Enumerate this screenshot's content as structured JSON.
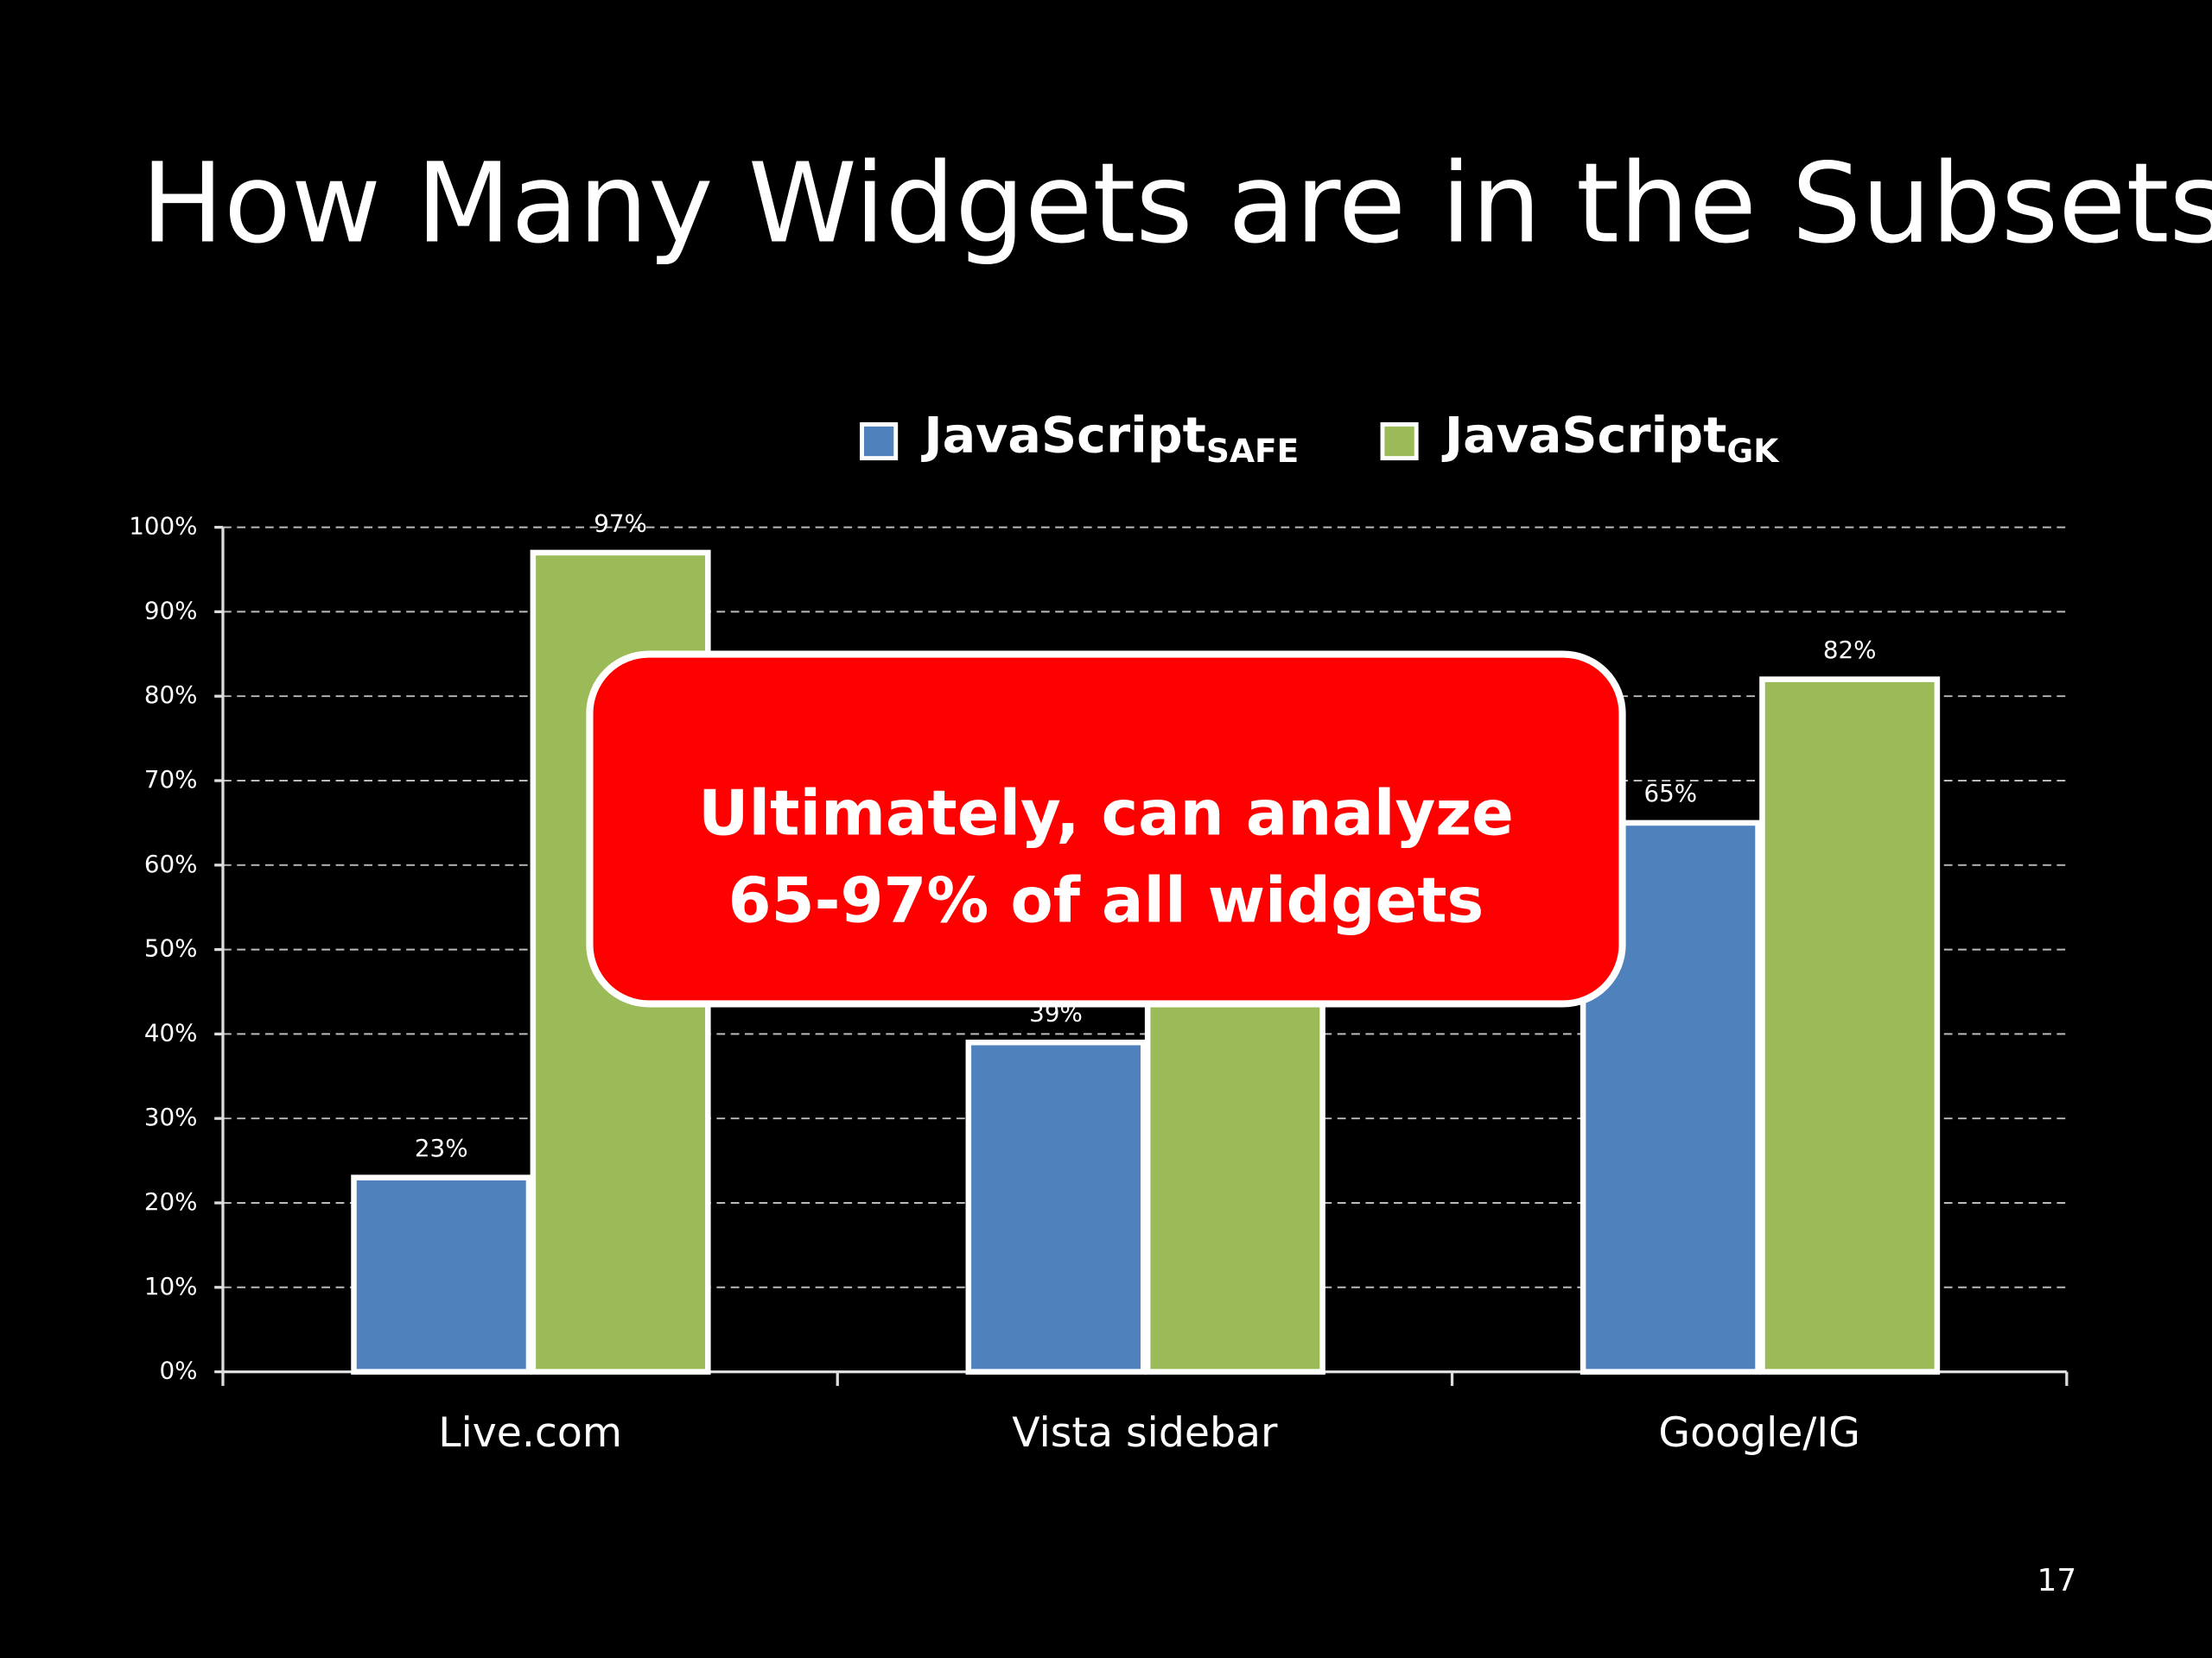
{
  "chart_data": {
    "type": "bar",
    "title": "How Many Widgets are in the Subsets?",
    "categories": [
      "Live.com",
      "Vista sidebar",
      "Google/IG"
    ],
    "series": [
      {
        "name": "JavaScript",
        "subscript": "SAFE",
        "color": "#4f81bd",
        "values": [
          23,
          39,
          65
        ],
        "value_labels": [
          "23%",
          "39%",
          "65%"
        ]
      },
      {
        "name": "JavaScript",
        "subscript": "GK",
        "color": "#9bbb59",
        "values": [
          97,
          60,
          82
        ],
        "value_labels": [
          "97%",
          null,
          "82%"
        ]
      }
    ],
    "ylim": [
      0,
      100
    ],
    "yticks": [
      {
        "value": 0,
        "label": "0%"
      },
      {
        "value": 10,
        "label": "10%"
      },
      {
        "value": 20,
        "label": "20%"
      },
      {
        "value": 30,
        "label": "30%"
      },
      {
        "value": 40,
        "label": "40%"
      },
      {
        "value": 50,
        "label": "50%"
      },
      {
        "value": 60,
        "label": "60%"
      },
      {
        "value": 70,
        "label": "70%"
      },
      {
        "value": 80,
        "label": "80%"
      },
      {
        "value": 90,
        "label": "90%"
      },
      {
        "value": 100,
        "label": "100%"
      }
    ],
    "grid": true,
    "legend": "top",
    "annotation": [
      "Ultimately, can analyze",
      "65-97% of all widgets"
    ],
    "page_number": "17"
  }
}
